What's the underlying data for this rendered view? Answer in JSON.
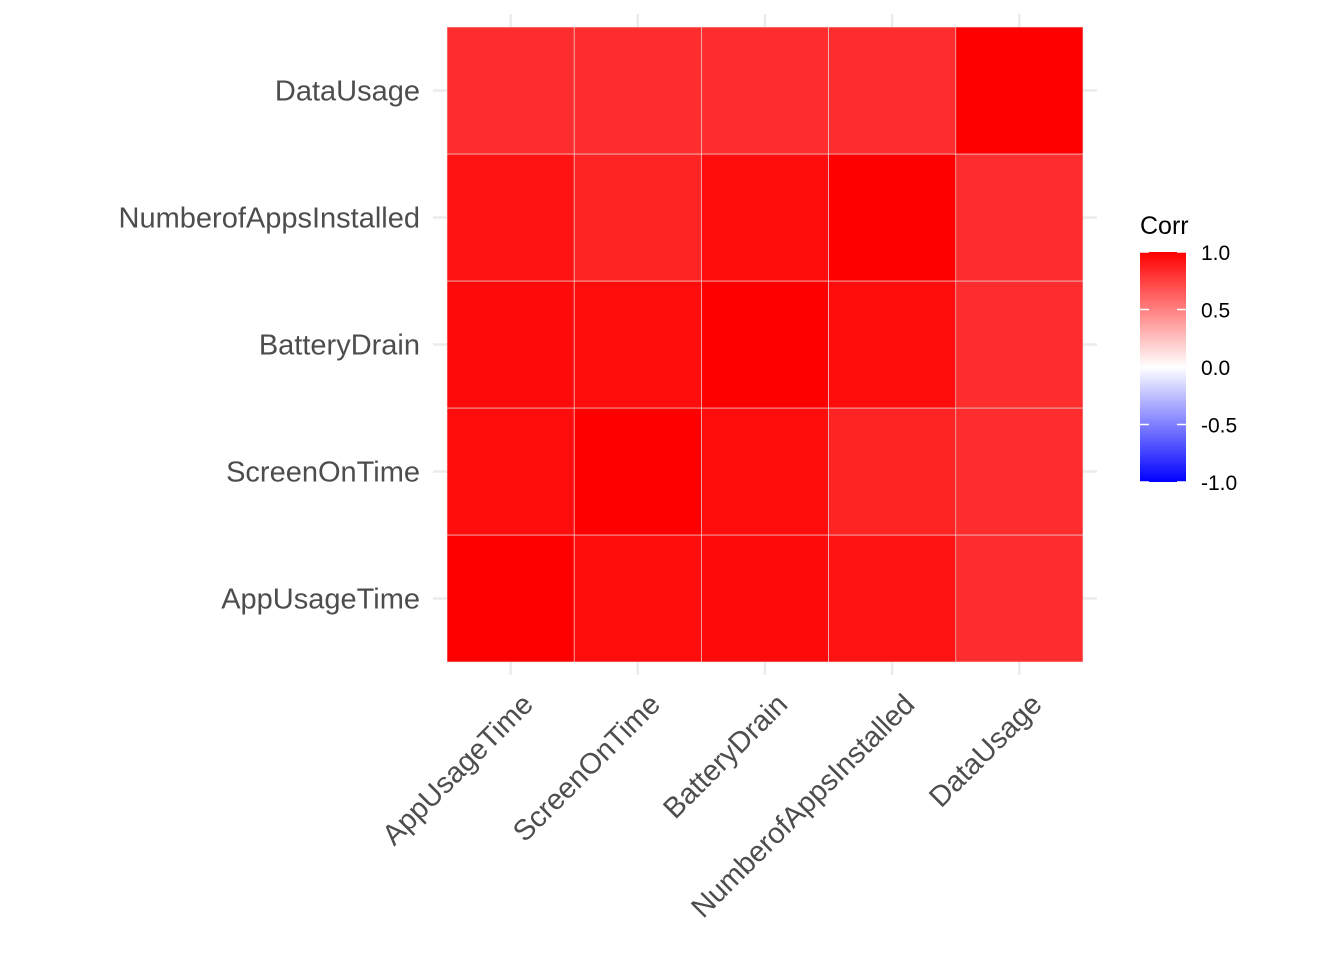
{
  "chart_data": {
    "type": "heatmap",
    "title": "",
    "xlabel": "",
    "ylabel": "",
    "x_categories": [
      "AppUsageTime",
      "ScreenOnTime",
      "BatteryDrain",
      "NumberofAppsInstalled",
      "DataUsage"
    ],
    "y_categories": [
      "AppUsageTime",
      "ScreenOnTime",
      "BatteryDrain",
      "NumberofAppsInstalled",
      "DataUsage"
    ],
    "matrix": [
      [
        1.0,
        0.95,
        0.96,
        0.93,
        0.82
      ],
      [
        0.95,
        1.0,
        0.95,
        0.86,
        0.82
      ],
      [
        0.96,
        0.95,
        1.0,
        0.95,
        0.82
      ],
      [
        0.93,
        0.86,
        0.95,
        1.0,
        0.82
      ],
      [
        0.82,
        0.82,
        0.82,
        0.82,
        1.0
      ]
    ],
    "legend": {
      "title": "Corr",
      "position": "right",
      "range": [
        -1.0,
        1.0
      ],
      "ticks": [
        1.0,
        0.5,
        0.0,
        -0.5,
        -1.0
      ],
      "tick_labels": [
        "1.0",
        "0.5",
        "0.0",
        "-0.5",
        "-1.0"
      ],
      "colors": {
        "high": "#ff0000",
        "mid": "#ffffff",
        "low": "#0000ff"
      }
    },
    "grid": true,
    "gridline_color": "#ebebeb",
    "tile_border_color": "#e6e6e6",
    "axis_text_color": "#4d4d4d"
  }
}
